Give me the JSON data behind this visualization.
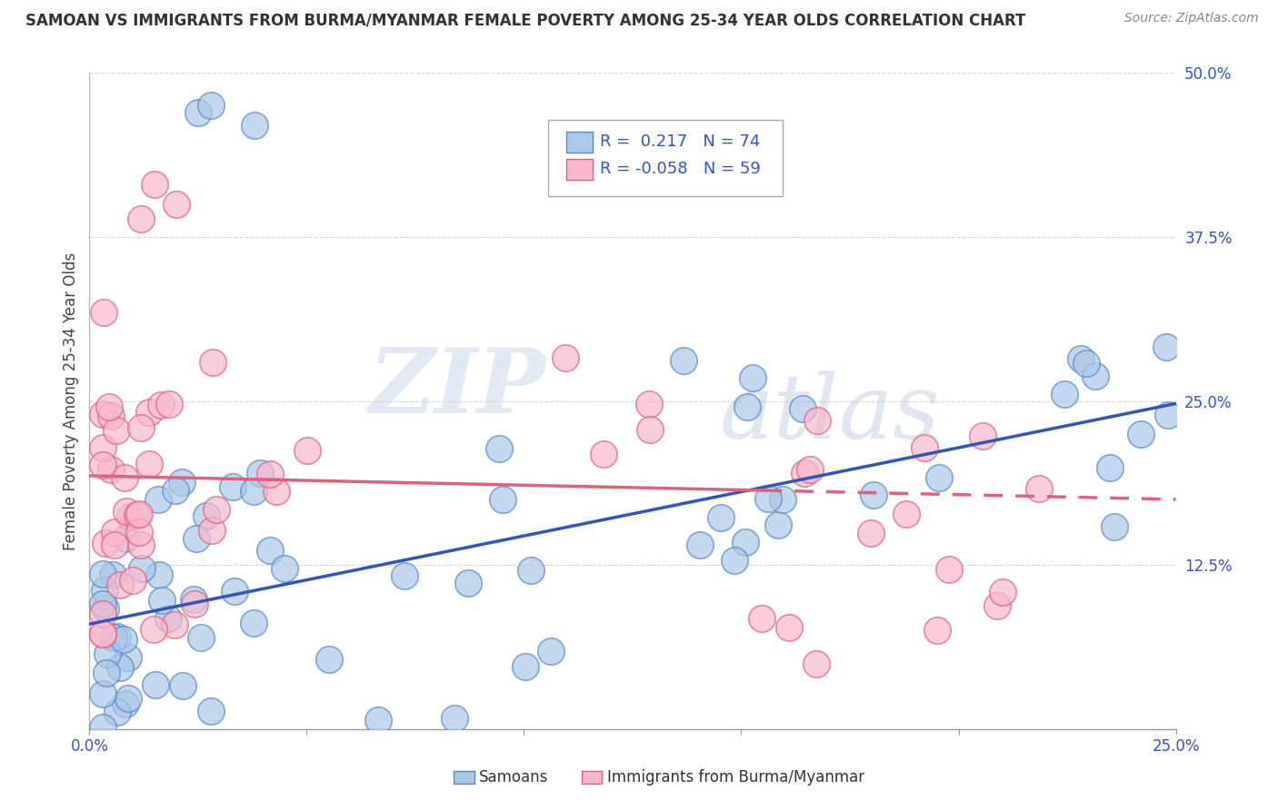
{
  "title": "SAMOAN VS IMMIGRANTS FROM BURMA/MYANMAR FEMALE POVERTY AMONG 25-34 YEAR OLDS CORRELATION CHART",
  "source": "Source: ZipAtlas.com",
  "ylabel": "Female Poverty Among 25-34 Year Olds",
  "xlim": [
    0,
    0.25
  ],
  "ylim": [
    0,
    0.5
  ],
  "yticks": [
    0.0,
    0.125,
    0.25,
    0.375,
    0.5
  ],
  "yticklabels": [
    "",
    "12.5%",
    "25.0%",
    "37.5%",
    "50.0%"
  ],
  "grid_color": "#cccccc",
  "background_color": "#ffffff",
  "series1_color": "#aac8e8",
  "series1_edge": "#5588cc",
  "series2_color": "#f8b8cc",
  "series2_edge": "#e06080",
  "line1_color": "#3355bb",
  "line2_color": "#e06080",
  "R1": 0.217,
  "N1": 74,
  "R2": -0.058,
  "N2": 59,
  "legend_labels": [
    "Samoans",
    "Immigrants from Burma/Myanmar"
  ],
  "watermark_zip": "ZIP",
  "watermark_atlas": "atlas",
  "line1_x0": 0.0,
  "line1_y0": 0.08,
  "line1_x1": 0.25,
  "line1_y1": 0.248,
  "line2_x0": 0.0,
  "line2_y0": 0.193,
  "line2_x1": 0.25,
  "line2_y1": 0.175,
  "line2_solid_end": 0.155,
  "title_fontsize": 12,
  "axis_label_color": "#3355bb",
  "tick_fontsize": 12
}
